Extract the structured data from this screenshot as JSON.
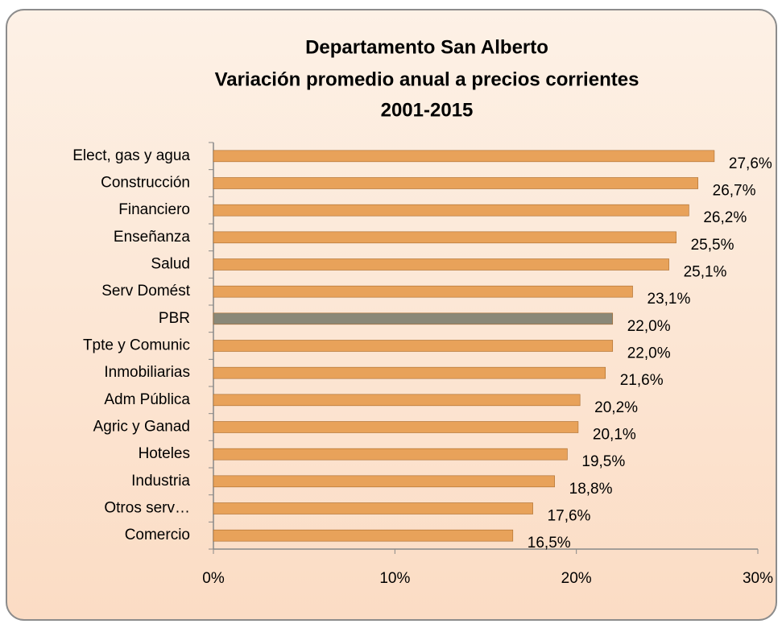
{
  "chart_data": {
    "type": "bar",
    "orientation": "horizontal",
    "title": [
      "Departamento San Alberto",
      "Variación promedio anual a precios corrientes",
      "2001-2015"
    ],
    "categories": [
      "Elect, gas y agua",
      "Construcción",
      "Financiero",
      "Enseñanza",
      "Salud",
      "Serv Domést",
      "PBR",
      "Tpte y Comunic",
      "Inmobiliarias",
      "Adm Pública",
      "Agric y Ganad",
      "Hoteles",
      "Industria",
      "Otros serv…",
      "Comercio"
    ],
    "values": [
      27.6,
      26.7,
      26.2,
      25.5,
      25.1,
      23.1,
      22.0,
      22.0,
      21.6,
      20.2,
      20.1,
      19.5,
      18.8,
      17.6,
      16.5
    ],
    "value_labels": [
      "27,6%",
      "26,7%",
      "26,2%",
      "25,5%",
      "25,1%",
      "23,1%",
      "22,0%",
      "22,0%",
      "21,6%",
      "20,2%",
      "20,1%",
      "19,5%",
      "18,8%",
      "17,6%",
      "16,5%"
    ],
    "colors": [
      "#e8a25a",
      "#e8a25a",
      "#e8a25a",
      "#e8a25a",
      "#e8a25a",
      "#e8a25a",
      "#8a8878",
      "#e8a25a",
      "#e8a25a",
      "#e8a25a",
      "#e8a25a",
      "#e8a25a",
      "#e8a25a",
      "#e8a25a",
      "#e8a25a"
    ],
    "xlim": [
      0,
      30
    ],
    "xticks": [
      {
        "value": 0,
        "label": "0%"
      },
      {
        "value": 10,
        "label": "10%"
      },
      {
        "value": 20,
        "label": "20%"
      },
      {
        "value": 30,
        "label": "30%"
      }
    ],
    "grid": false
  }
}
